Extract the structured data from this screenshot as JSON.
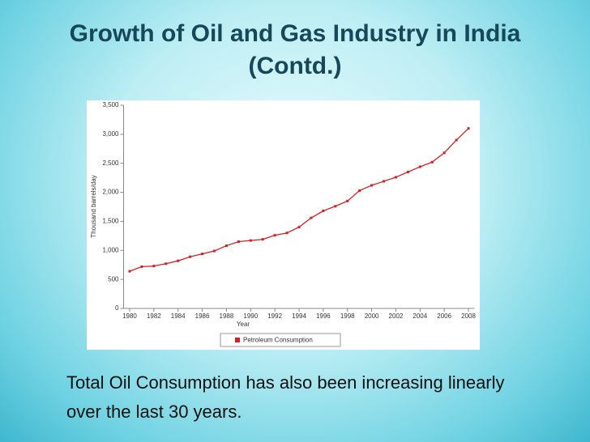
{
  "slide": {
    "title": "Growth of Oil and Gas Industry in India (Contd.)",
    "caption": "Total Oil Consumption has also been increasing linearly over the last 30 years."
  },
  "chart_data": {
    "type": "line",
    "xlabel": "Year",
    "ylabel": "Thousand barrels/day",
    "x": [
      1980,
      1981,
      1982,
      1983,
      1984,
      1985,
      1986,
      1987,
      1988,
      1989,
      1990,
      1991,
      1992,
      1993,
      1994,
      1995,
      1996,
      1997,
      1998,
      1999,
      2000,
      2001,
      2002,
      2003,
      2004,
      2005,
      2006,
      2007,
      2008
    ],
    "series": [
      {
        "name": "Petroleum Consumption",
        "color": "#d42020",
        "values": [
          640,
          720,
          730,
          770,
          820,
          890,
          940,
          990,
          1080,
          1150,
          1170,
          1190,
          1260,
          1300,
          1400,
          1560,
          1680,
          1760,
          1850,
          2030,
          2120,
          2190,
          2260,
          2350,
          2440,
          2520,
          2680,
          2900,
          3100
        ]
      }
    ],
    "xlim": [
      1979.5,
      2008.5
    ],
    "xticks": [
      1980,
      1982,
      1984,
      1986,
      1988,
      1990,
      1992,
      1994,
      1996,
      1998,
      2000,
      2002,
      2004,
      2006,
      2008
    ],
    "ylim": [
      0,
      3500
    ],
    "yticks": [
      0,
      500,
      {
        "value": 1000,
        "label": "1,000"
      },
      {
        "value": 1500,
        "label": "1,500"
      },
      {
        "value": 2000,
        "label": "2,000"
      },
      {
        "value": 2500,
        "label": "2,500"
      },
      {
        "value": 3000,
        "label": "3,000"
      },
      {
        "value": 3500,
        "label": "3,500"
      }
    ],
    "grid": false,
    "legend": "bottom"
  }
}
